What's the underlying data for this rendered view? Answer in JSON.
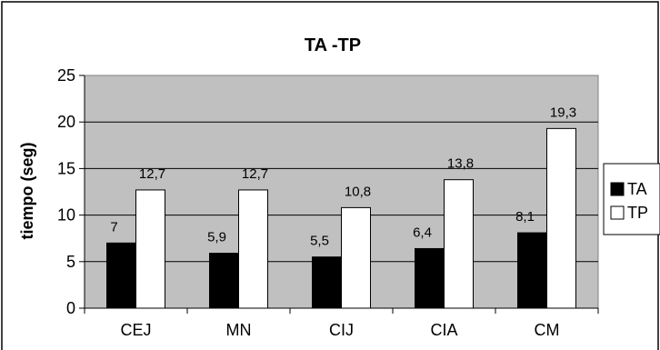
{
  "chart_data": {
    "type": "bar",
    "title": "TA -TP",
    "xlabel": "",
    "ylabel": "tiempo (seg)",
    "categories": [
      "CEJ",
      "MN",
      "CIJ",
      "CIA",
      "CM"
    ],
    "series": [
      {
        "name": "TA",
        "values": [
          7,
          5.9,
          5.5,
          6.4,
          8.1
        ],
        "labels": [
          "7",
          "5,9",
          "5,5",
          "6,4",
          "8,1"
        ],
        "color": "#000000"
      },
      {
        "name": "TP",
        "values": [
          12.7,
          12.7,
          10.8,
          13.8,
          19.3
        ],
        "labels": [
          "12,7",
          "12,7",
          "10,8",
          "13,8",
          "19,3"
        ],
        "color": "#ffffff"
      }
    ],
    "ylim": [
      0,
      25
    ],
    "yticks": [
      "0",
      "5",
      "10",
      "15",
      "20",
      "25"
    ],
    "grid": true,
    "legend_position": "right",
    "plot_background": "#c0c0c0"
  }
}
